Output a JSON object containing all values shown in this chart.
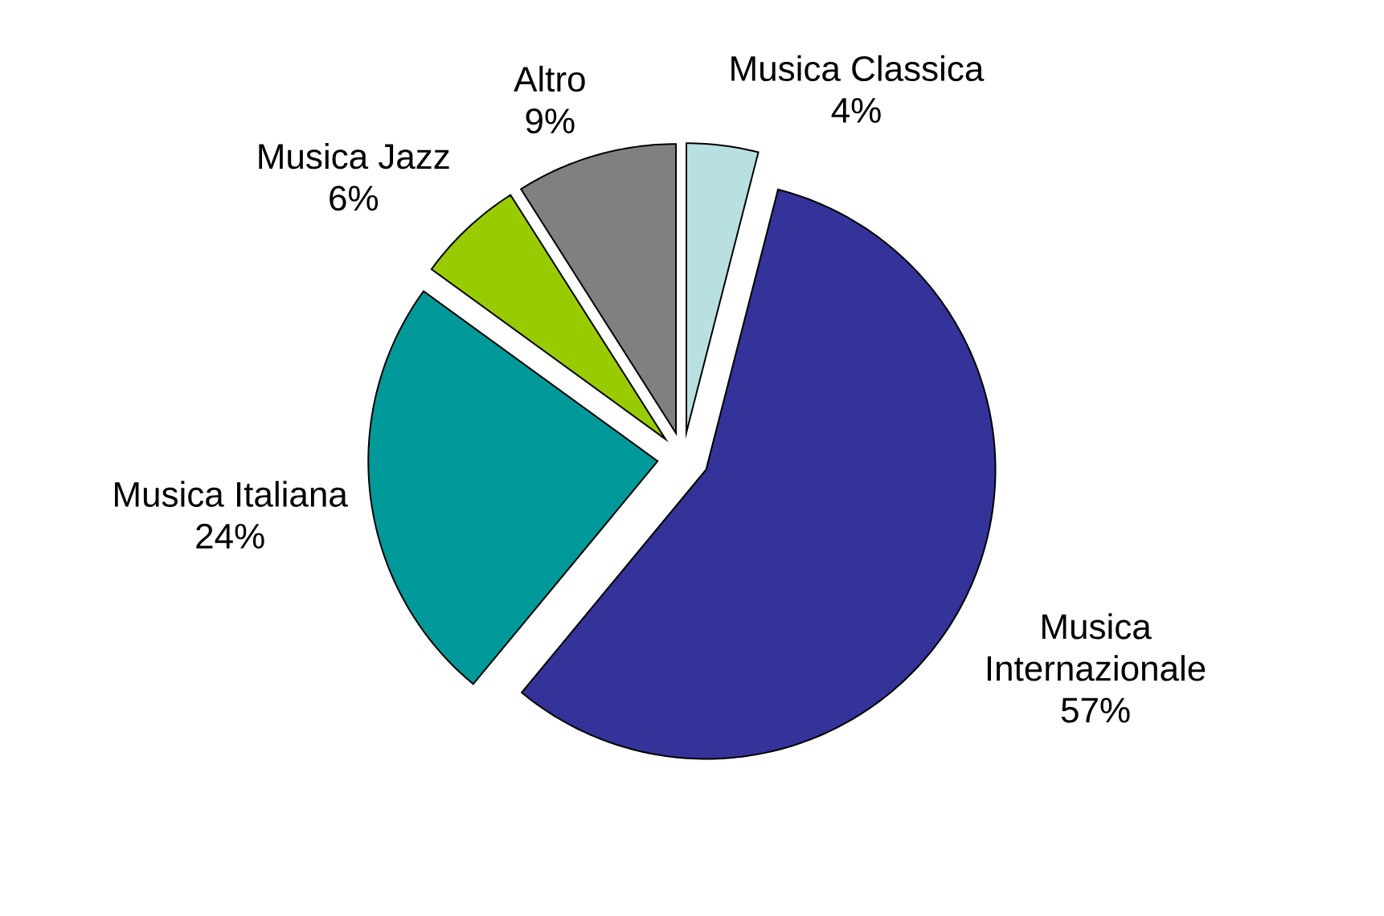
{
  "chart_data": {
    "type": "pie",
    "categories": [
      "Musica Classica",
      "Musica Internazionale",
      "Musica Italiana",
      "Musica Jazz",
      "Altro"
    ],
    "values": [
      4,
      57,
      24,
      6,
      9
    ],
    "value_labels": [
      "4%",
      "57%",
      "24%",
      "6%",
      "9%"
    ],
    "colors": [
      "#b8e0e0",
      "#333399",
      "#009999",
      "#99cc00",
      "#808080"
    ]
  }
}
